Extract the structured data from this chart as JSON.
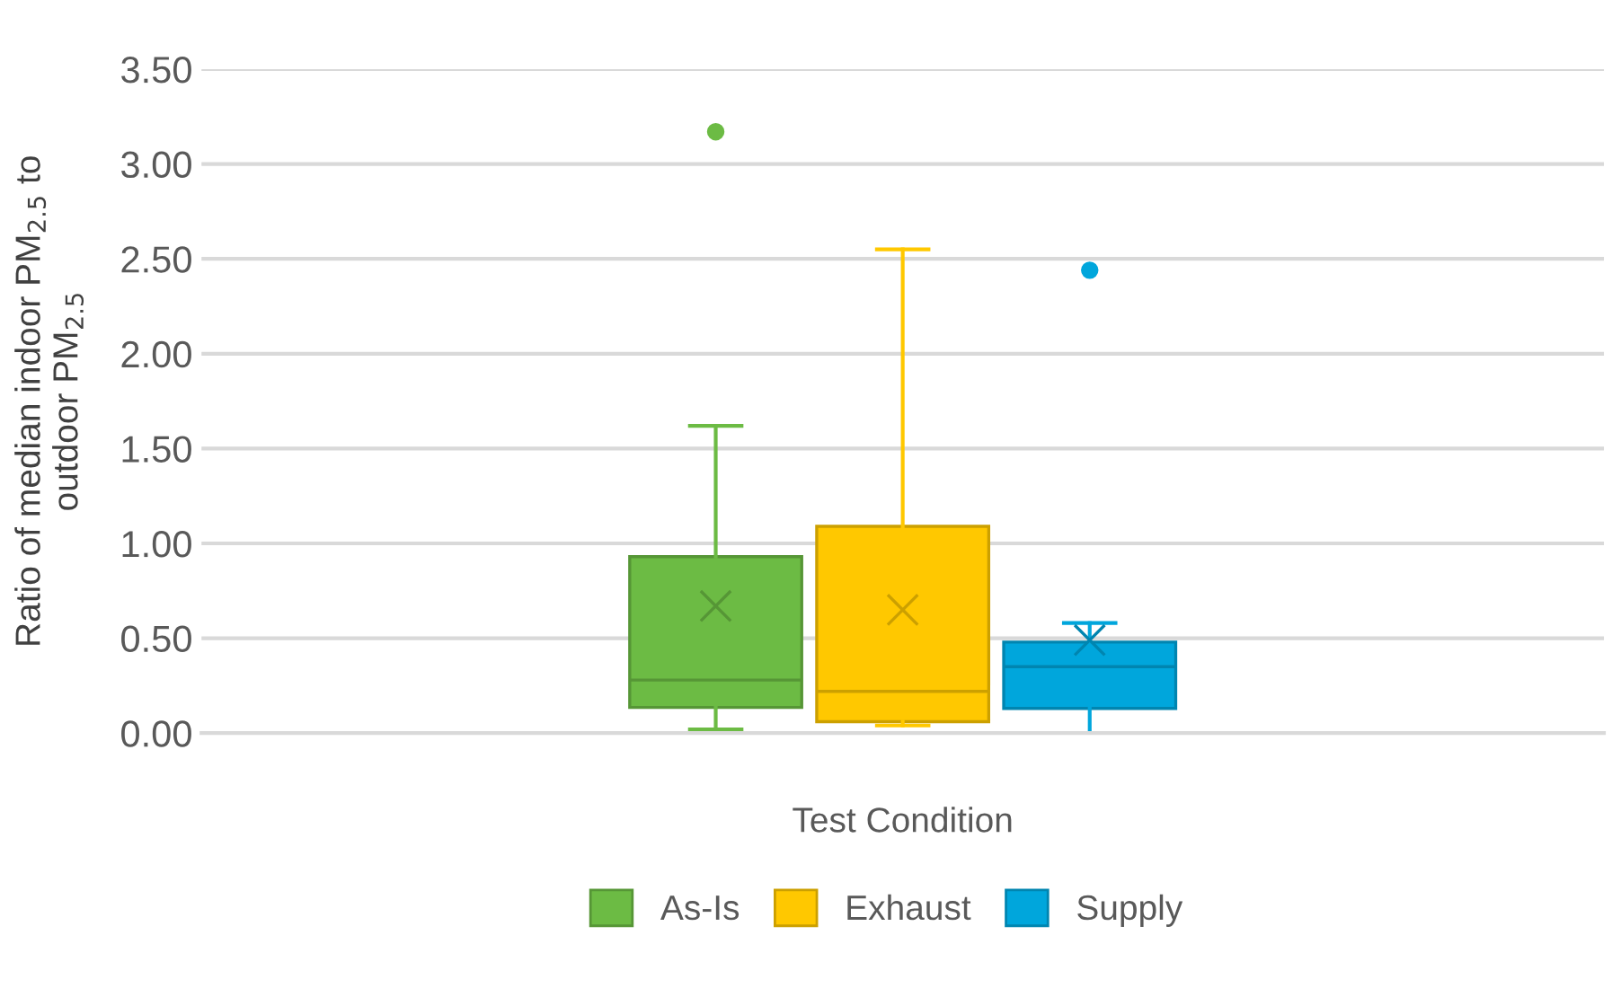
{
  "chart_data": {
    "type": "box",
    "xlabel": "Test Condition",
    "ylabel": "Ratio of median indoor PM$_{2.5}$ to\noutdoor PM$_{2.5}$",
    "categories": [
      null
    ],
    "series": [
      {
        "name": "As-Is",
        "color": "#6cbb44",
        "boxes": [
          {
            "low": 0.02,
            "q1": 0.135,
            "median": 0.28,
            "q3": 0.93,
            "high": 1.62,
            "mean": 0.67,
            "outliers": [
              3.17
            ]
          }
        ]
      },
      {
        "name": "Exhaust",
        "color": "#ffc800",
        "boxes": [
          {
            "low": 0.04,
            "q1": 0.06,
            "median": 0.22,
            "q3": 1.09,
            "high": 2.55,
            "mean": 0.65
          }
        ]
      },
      {
        "name": "Supply",
        "color": "#00a6dc",
        "boxes": [
          {
            "low": 0.0,
            "q1": 0.13,
            "median": 0.35,
            "q3": 0.48,
            "high": 0.58,
            "mean": 0.49,
            "outliers": [
              2.44
            ]
          }
        ]
      }
    ],
    "ylim": [
      0,
      3.5
    ],
    "yticks": [
      {
        "value": 0,
        "label": "0.00"
      },
      {
        "value": 0.5,
        "label": "0.50"
      },
      {
        "value": 1,
        "label": "1.00"
      },
      {
        "value": 1.5,
        "label": "1.50"
      },
      {
        "value": 2,
        "label": "2.00"
      },
      {
        "value": 2.5,
        "label": "2.50"
      },
      {
        "value": 3,
        "label": "3.00"
      },
      {
        "value": 3.5,
        "label": "3.50"
      }
    ],
    "grid": "y",
    "legend": "bottom"
  }
}
